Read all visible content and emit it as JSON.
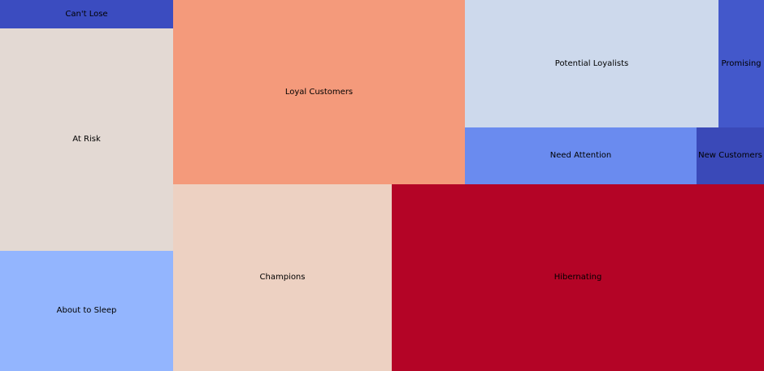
{
  "chart_data": {
    "type": "treemap",
    "cells": [
      {
        "label": "Can't Lose",
        "color": "#3b4cc0"
      },
      {
        "label": "At Risk",
        "color": "#e3d9d3"
      },
      {
        "label": "About to Sleep",
        "color": "#93b5fe"
      },
      {
        "label": "Loyal Customers",
        "color": "#f49a7b"
      },
      {
        "label": "Champions",
        "color": "#edd1c2"
      },
      {
        "label": "Potential Loyalists",
        "color": "#cdd9ec"
      },
      {
        "label": "Promising",
        "color": "#4358cb"
      },
      {
        "label": "Need Attention",
        "color": "#6a8bef"
      },
      {
        "label": "New Customers",
        "color": "#3a49b8"
      },
      {
        "label": "Hibernating",
        "color": "#b40426"
      }
    ]
  }
}
